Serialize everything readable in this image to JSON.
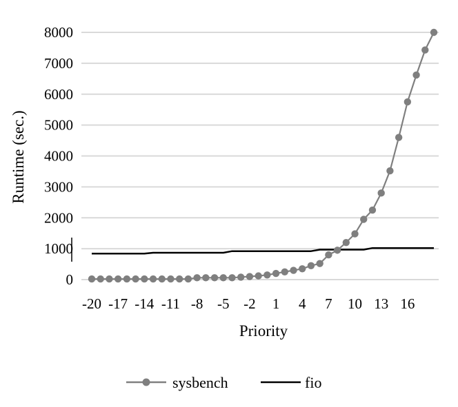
{
  "chart_data": {
    "type": "line",
    "title": "",
    "xlabel": "Priority",
    "ylabel": "Runtime (sec.)",
    "ylim": [
      0,
      8000
    ],
    "yticks": [
      0,
      1000,
      2000,
      3000,
      4000,
      5000,
      6000,
      7000,
      8000
    ],
    "xlim": [
      -20,
      19
    ],
    "xticks": [
      -20,
      -17,
      -14,
      -11,
      -8,
      -5,
      -2,
      1,
      4,
      7,
      10,
      13,
      16
    ],
    "x": [
      -20,
      -19,
      -18,
      -17,
      -16,
      -15,
      -14,
      -13,
      -12,
      -11,
      -10,
      -9,
      -8,
      -7,
      -6,
      -5,
      -4,
      -3,
      -2,
      -1,
      0,
      1,
      2,
      3,
      4,
      5,
      6,
      7,
      8,
      9,
      10,
      11,
      12,
      13,
      14,
      15,
      16,
      17,
      18,
      19
    ],
    "grid": true,
    "legend": "bottom",
    "series": [
      {
        "name": "sysbench",
        "color": "#7f7f7f",
        "marker": "circle",
        "values": [
          20,
          20,
          20,
          20,
          20,
          20,
          20,
          20,
          20,
          20,
          20,
          20,
          60,
          60,
          60,
          60,
          60,
          80,
          100,
          120,
          150,
          200,
          250,
          300,
          350,
          450,
          520,
          800,
          950,
          1200,
          1480,
          1950,
          2250,
          2800,
          3520,
          4600,
          5750,
          6620,
          7430,
          8000
        ]
      },
      {
        "name": "fio",
        "color": "#000000",
        "marker": "none",
        "values": [
          840,
          840,
          840,
          840,
          840,
          840,
          840,
          870,
          870,
          870,
          870,
          870,
          870,
          870,
          870,
          870,
          920,
          920,
          920,
          920,
          920,
          920,
          920,
          920,
          920,
          920,
          970,
          970,
          970,
          970,
          970,
          970,
          1020,
          1020,
          1020,
          1020,
          1020,
          1020,
          1020,
          1020
        ]
      }
    ]
  }
}
